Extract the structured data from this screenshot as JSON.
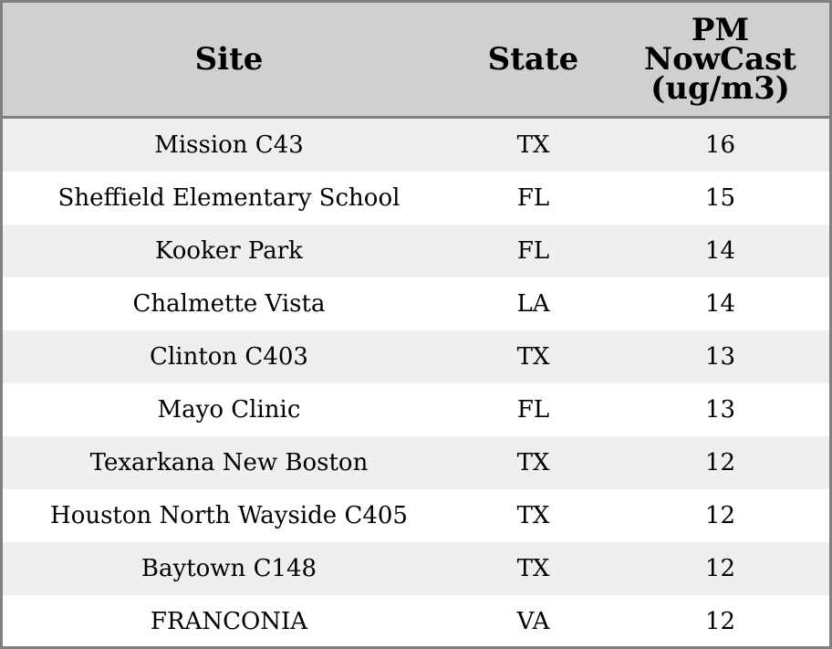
{
  "chart_data": {
    "type": "table",
    "columns": [
      "Site",
      "State",
      "PM NowCast (ug/m3)"
    ],
    "header_lines": {
      "site": [
        "Site"
      ],
      "state": [
        "State"
      ],
      "pm": [
        "PM",
        "NowCast",
        "(ug/m3)"
      ]
    },
    "rows": [
      {
        "site": "Mission C43",
        "state": "TX",
        "pm": "16"
      },
      {
        "site": "Sheffield Elementary School",
        "state": "FL",
        "pm": "15"
      },
      {
        "site": "Kooker Park",
        "state": "FL",
        "pm": "14"
      },
      {
        "site": "Chalmette Vista",
        "state": "LA",
        "pm": "14"
      },
      {
        "site": "Clinton C403",
        "state": "TX",
        "pm": "13"
      },
      {
        "site": "Mayo Clinic",
        "state": "FL",
        "pm": "13"
      },
      {
        "site": "Texarkana New Boston",
        "state": "TX",
        "pm": "12"
      },
      {
        "site": "Houston North Wayside C405",
        "state": "TX",
        "pm": "12"
      },
      {
        "site": "Baytown C148",
        "state": "TX",
        "pm": "12"
      },
      {
        "site": "FRANCONIA",
        "state": "VA",
        "pm": "12"
      }
    ]
  },
  "colors": {
    "header_bg": "#d0d0d0",
    "row_odd_bg": "#efefef",
    "row_even_bg": "#ffffff",
    "border": "#808080"
  }
}
